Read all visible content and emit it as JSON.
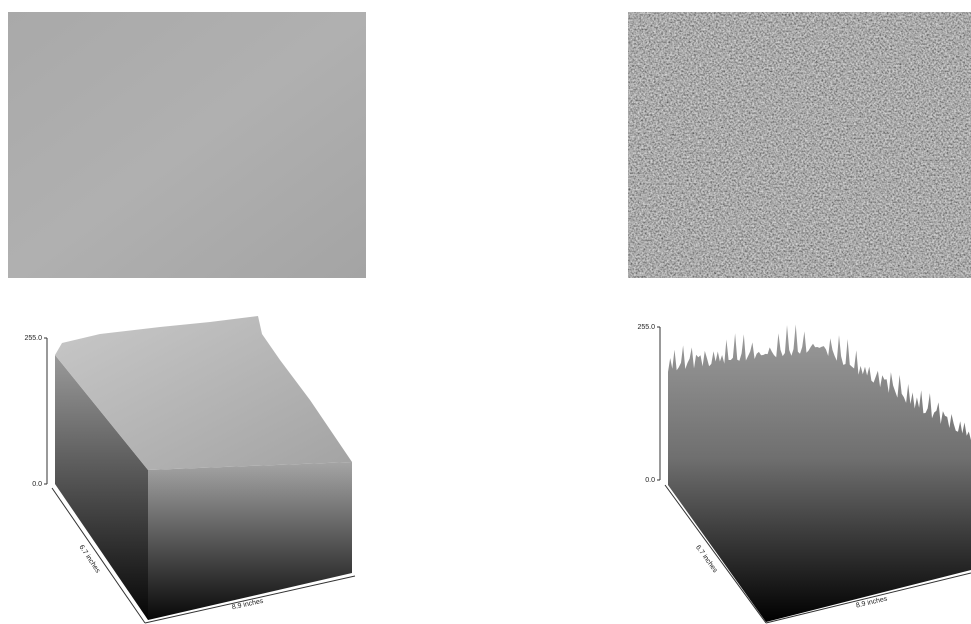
{
  "plots": [
    {
      "z_max": "255.0",
      "z_min": "0.0",
      "depth_label": "6.7 inches",
      "width_label": "8.9 inches"
    },
    {
      "z_max": "255.0",
      "z_min": "0.0",
      "depth_label": "6.7 inches",
      "width_label": "8.9 inches"
    }
  ]
}
